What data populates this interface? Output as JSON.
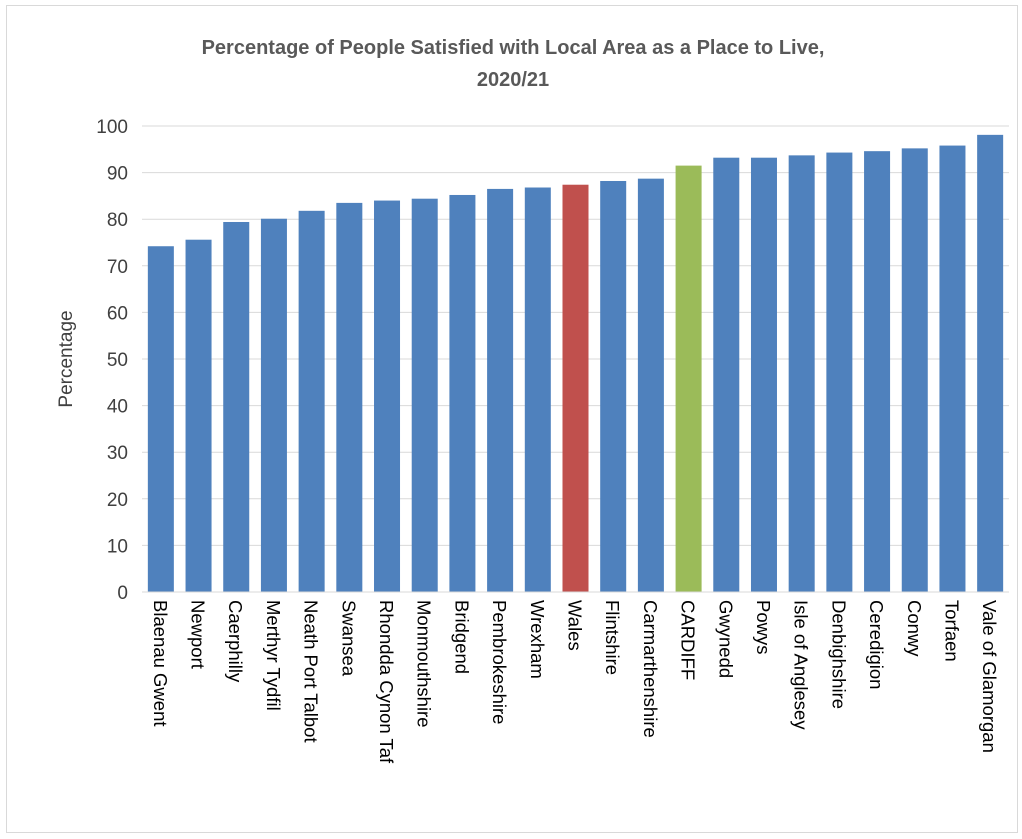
{
  "chart_data": {
    "type": "bar",
    "title_lines": [
      "Percentage of People Satisfied with Local Area as a Place to Live,",
      "2020/21"
    ],
    "xlabel": "",
    "ylabel": "Percentage",
    "ylim": [
      0,
      100
    ],
    "yticks": [
      0,
      10,
      20,
      30,
      40,
      50,
      60,
      70,
      80,
      90,
      100
    ],
    "grid": true,
    "legend": "none",
    "categories": [
      "Blaenau Gwent",
      "Newport",
      "Caerphilly",
      "Merthyr Tydfil",
      "Neath Port Talbot",
      "Swansea",
      "Rhondda Cynon Taf",
      "Monmouthshire",
      "Bridgend",
      "Pembrokeshire",
      "Wrexham",
      "Wales",
      "Flintshire",
      "Carmarthenshire",
      "CARDIFF",
      "Gwynedd",
      "Powys",
      "Isle of Anglesey",
      "Denbighshire",
      "Ceredigion",
      "Conwy",
      "Torfaen",
      "Vale of Glamorgan"
    ],
    "values": [
      74.2,
      75.6,
      79.4,
      80.1,
      81.8,
      83.5,
      84.0,
      84.4,
      85.2,
      86.5,
      86.8,
      87.4,
      88.2,
      88.7,
      91.5,
      93.2,
      93.2,
      93.7,
      94.3,
      94.6,
      95.2,
      95.8,
      98.1
    ],
    "colors": {
      "default": "#4f81bd",
      "Wales": "#c0504d",
      "CARDIFF": "#9bbb59",
      "grid": "#d9d9d9",
      "axis": "#d9d9d9"
    }
  }
}
